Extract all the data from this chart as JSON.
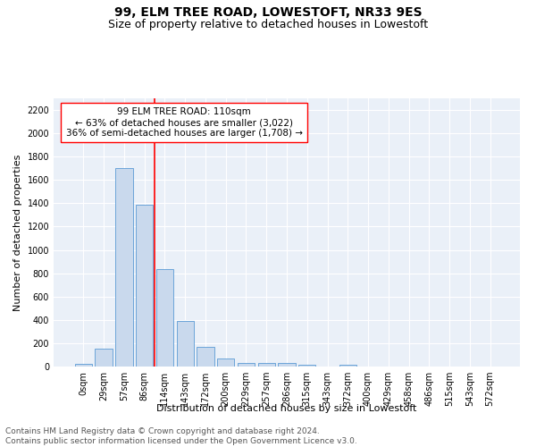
{
  "title": "99, ELM TREE ROAD, LOWESTOFT, NR33 9ES",
  "subtitle": "Size of property relative to detached houses in Lowestoft",
  "xlabel": "Distribution of detached houses by size in Lowestoft",
  "ylabel": "Number of detached properties",
  "bar_labels": [
    "0sqm",
    "29sqm",
    "57sqm",
    "86sqm",
    "114sqm",
    "143sqm",
    "172sqm",
    "200sqm",
    "229sqm",
    "257sqm",
    "286sqm",
    "315sqm",
    "343sqm",
    "372sqm",
    "400sqm",
    "429sqm",
    "458sqm",
    "486sqm",
    "515sqm",
    "543sqm",
    "572sqm"
  ],
  "bar_values": [
    20,
    155,
    1700,
    1390,
    835,
    390,
    165,
    70,
    30,
    28,
    27,
    18,
    0,
    18,
    0,
    0,
    0,
    0,
    0,
    0,
    0
  ],
  "bar_color": "#c9d9ed",
  "bar_edge_color": "#5b9bd5",
  "red_line_index": 4,
  "annotation_text": "99 ELM TREE ROAD: 110sqm\n← 63% of detached houses are smaller (3,022)\n36% of semi-detached houses are larger (1,708) →",
  "annotation_box_color": "white",
  "annotation_box_edge_color": "red",
  "red_line_color": "red",
  "ylim": [
    0,
    2300
  ],
  "yticks": [
    0,
    200,
    400,
    600,
    800,
    1000,
    1200,
    1400,
    1600,
    1800,
    2000,
    2200
  ],
  "footer_text": "Contains HM Land Registry data © Crown copyright and database right 2024.\nContains public sector information licensed under the Open Government Licence v3.0.",
  "bg_color": "#eaf0f8",
  "grid_color": "white",
  "title_fontsize": 10,
  "subtitle_fontsize": 9,
  "axis_label_fontsize": 8,
  "tick_fontsize": 7,
  "annotation_fontsize": 7.5,
  "footer_fontsize": 6.5
}
